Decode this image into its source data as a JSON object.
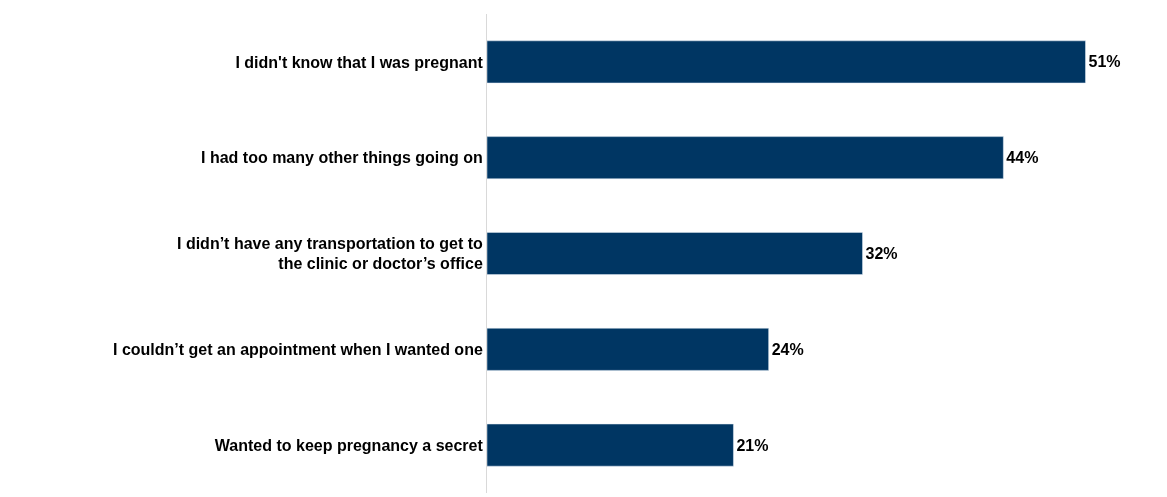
{
  "chart_data": {
    "type": "bar",
    "orientation": "horizontal",
    "categories": [
      "I didn't know that I was pregnant",
      "I had too many other things going on",
      "I didn’t have any transportation to get to the clinic or doctor’s office",
      "I couldn’t get an appointment when I wanted one",
      "Wanted to keep pregnancy a secret"
    ],
    "values": [
      51,
      44,
      32,
      24,
      21
    ],
    "value_labels": [
      "51%",
      "44%",
      "32%",
      "24%",
      "21%"
    ],
    "color": "#003663",
    "legend": false
  }
}
